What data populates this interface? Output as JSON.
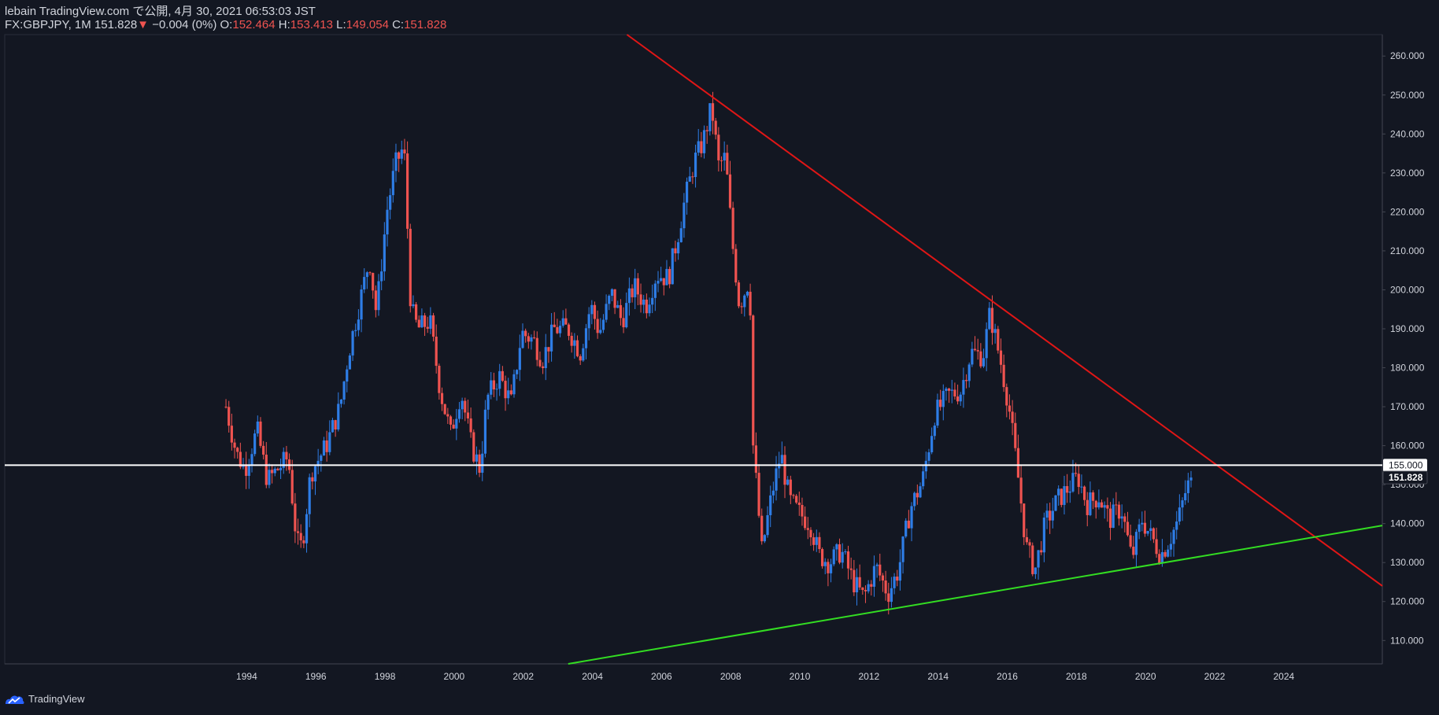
{
  "header": {
    "line1": "lebain TradingView.com で公開, 4月 30, 2021 06:53:03 JST",
    "symbol": "FX:GBPJPY, 1M",
    "last": "151.828",
    "arrow": "▼",
    "change": "−0.004 (0%)",
    "o_label": "O:",
    "o_value": "152.464",
    "h_label": "H:",
    "h_value": "153.413",
    "l_label": "L:",
    "l_value": "149.054",
    "c_label": "C:",
    "c_value": "151.828"
  },
  "footer": {
    "brand": "TradingView",
    "logo_icon": "tradingview-logo-icon"
  },
  "colors": {
    "background": "#131722",
    "up": "#2e7de6",
    "down": "#ef5350",
    "resistance": "#e01616",
    "support": "#33dd22",
    "level": "#ffffff",
    "axis_text": "#d1d4dc"
  },
  "chart_data": {
    "type": "candlestick",
    "symbol": "GBPJPY",
    "timeframe": "1M",
    "x_ticks": [
      "1994",
      "1996",
      "1998",
      "2000",
      "2002",
      "2004",
      "2006",
      "2008",
      "2010",
      "2012",
      "2014",
      "2016",
      "2018",
      "2020",
      "2022",
      "2024"
    ],
    "y_ticks": [
      "110.000",
      "120.000",
      "130.000",
      "140.000",
      "150.000",
      "160.000",
      "170.000",
      "180.000",
      "190.000",
      "200.000",
      "210.000",
      "220.000",
      "230.000",
      "240.000",
      "250.000",
      "260.000"
    ],
    "xlim": [
      1987.0,
      2026.85
    ],
    "ylim": [
      104.0,
      265.5
    ],
    "price_labels": [
      {
        "text": "155.000",
        "value": 155.0,
        "style": "level"
      },
      {
        "text": "151.828",
        "value": 151.828,
        "style": "last"
      }
    ],
    "lines": [
      {
        "name": "resistance trendline",
        "color": "#e01616",
        "from": [
          2005.0,
          265.5
        ],
        "to": [
          2026.85,
          124.0
        ]
      },
      {
        "name": "support trendline",
        "color": "#33dd22",
        "from": [
          2003.3,
          104.0
        ],
        "to": [
          2026.85,
          139.5
        ]
      },
      {
        "name": "horizontal level",
        "color": "#ffffff",
        "from": [
          1987.0,
          155.0
        ],
        "to": [
          2026.85,
          155.0
        ]
      }
    ],
    "closes": [
      {
        "t": 1993.4,
        "c": 170
      },
      {
        "t": 1993.7,
        "c": 158
      },
      {
        "t": 1993.95,
        "c": 154
      },
      {
        "t": 1994.3,
        "c": 164
      },
      {
        "t": 1994.6,
        "c": 151
      },
      {
        "t": 1994.9,
        "c": 154
      },
      {
        "t": 1995.2,
        "c": 157
      },
      {
        "t": 1995.45,
        "c": 135
      },
      {
        "t": 1995.6,
        "c": 134
      },
      {
        "t": 1995.85,
        "c": 153
      },
      {
        "t": 1996.3,
        "c": 160
      },
      {
        "t": 1996.7,
        "c": 170
      },
      {
        "t": 1996.95,
        "c": 184
      },
      {
        "t": 1997.3,
        "c": 198
      },
      {
        "t": 1997.55,
        "c": 208
      },
      {
        "t": 1997.75,
        "c": 194
      },
      {
        "t": 1998.05,
        "c": 220
      },
      {
        "t": 1998.3,
        "c": 232
      },
      {
        "t": 1998.55,
        "c": 237
      },
      {
        "t": 1998.75,
        "c": 195
      },
      {
        "t": 1998.95,
        "c": 190
      },
      {
        "t": 1999.3,
        "c": 192
      },
      {
        "t": 1999.6,
        "c": 174
      },
      {
        "t": 1999.9,
        "c": 163
      },
      {
        "t": 2000.2,
        "c": 174
      },
      {
        "t": 2000.5,
        "c": 160
      },
      {
        "t": 2000.75,
        "c": 154
      },
      {
        "t": 2000.95,
        "c": 172
      },
      {
        "t": 2001.3,
        "c": 178
      },
      {
        "t": 2001.65,
        "c": 171
      },
      {
        "t": 2001.95,
        "c": 189
      },
      {
        "t": 2002.3,
        "c": 187
      },
      {
        "t": 2002.55,
        "c": 182
      },
      {
        "t": 2002.9,
        "c": 190
      },
      {
        "t": 2003.3,
        "c": 190
      },
      {
        "t": 2003.65,
        "c": 184
      },
      {
        "t": 2003.95,
        "c": 196
      },
      {
        "t": 2004.2,
        "c": 189
      },
      {
        "t": 2004.55,
        "c": 199
      },
      {
        "t": 2004.85,
        "c": 192
      },
      {
        "t": 2005.2,
        "c": 201
      },
      {
        "t": 2005.55,
        "c": 196
      },
      {
        "t": 2005.85,
        "c": 204
      },
      {
        "t": 2006.2,
        "c": 203
      },
      {
        "t": 2006.45,
        "c": 213
      },
      {
        "t": 2006.65,
        "c": 222
      },
      {
        "t": 2006.95,
        "c": 233
      },
      {
        "t": 2007.2,
        "c": 238
      },
      {
        "t": 2007.45,
        "c": 247
      },
      {
        "t": 2007.65,
        "c": 232
      },
      {
        "t": 2007.85,
        "c": 234
      },
      {
        "t": 2008.05,
        "c": 212
      },
      {
        "t": 2008.25,
        "c": 196
      },
      {
        "t": 2008.55,
        "c": 203
      },
      {
        "t": 2008.65,
        "c": 160
      },
      {
        "t": 2008.9,
        "c": 133
      },
      {
        "t": 2009.2,
        "c": 148
      },
      {
        "t": 2009.45,
        "c": 158
      },
      {
        "t": 2009.7,
        "c": 146
      },
      {
        "t": 2009.95,
        "c": 143
      },
      {
        "t": 2010.3,
        "c": 140
      },
      {
        "t": 2010.55,
        "c": 132
      },
      {
        "t": 2010.85,
        "c": 130
      },
      {
        "t": 2011.2,
        "c": 133
      },
      {
        "t": 2011.55,
        "c": 125
      },
      {
        "t": 2011.85,
        "c": 121
      },
      {
        "t": 2012.2,
        "c": 129
      },
      {
        "t": 2012.55,
        "c": 122
      },
      {
        "t": 2012.85,
        "c": 128
      },
      {
        "t": 2013.2,
        "c": 144
      },
      {
        "t": 2013.55,
        "c": 151
      },
      {
        "t": 2013.9,
        "c": 168
      },
      {
        "t": 2014.3,
        "c": 173
      },
      {
        "t": 2014.65,
        "c": 174
      },
      {
        "t": 2014.95,
        "c": 184
      },
      {
        "t": 2015.3,
        "c": 183
      },
      {
        "t": 2015.5,
        "c": 194
      },
      {
        "t": 2015.8,
        "c": 182
      },
      {
        "t": 2016.05,
        "c": 170
      },
      {
        "t": 2016.3,
        "c": 153
      },
      {
        "t": 2016.55,
        "c": 134
      },
      {
        "t": 2016.8,
        "c": 128
      },
      {
        "t": 2017.1,
        "c": 140
      },
      {
        "t": 2017.45,
        "c": 146
      },
      {
        "t": 2017.75,
        "c": 149
      },
      {
        "t": 2018.05,
        "c": 152
      },
      {
        "t": 2018.3,
        "c": 145
      },
      {
        "t": 2018.65,
        "c": 147
      },
      {
        "t": 2018.95,
        "c": 141
      },
      {
        "t": 2019.3,
        "c": 144
      },
      {
        "t": 2019.6,
        "c": 131
      },
      {
        "t": 2019.9,
        "c": 141
      },
      {
        "t": 2020.2,
        "c": 136
      },
      {
        "t": 2020.45,
        "c": 132
      },
      {
        "t": 2020.7,
        "c": 136
      },
      {
        "t": 2020.95,
        "c": 141
      },
      {
        "t": 2021.15,
        "c": 148
      },
      {
        "t": 2021.32,
        "c": 151.828
      }
    ]
  }
}
